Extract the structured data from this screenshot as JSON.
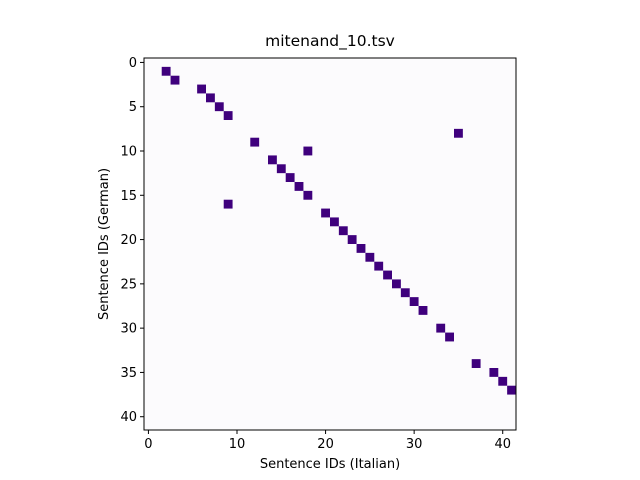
{
  "chart_data": {
    "type": "heatmap",
    "title": "mitenand_10.tsv",
    "xlabel": "Sentence IDs (Italian)",
    "ylabel": "Sentence IDs (German)",
    "xlim": [
      -0.5,
      41.5
    ],
    "ylim": [
      41.5,
      -0.5
    ],
    "x_ticks": [
      0,
      10,
      20,
      30,
      40
    ],
    "y_ticks": [
      0,
      5,
      10,
      15,
      20,
      25,
      30,
      35,
      40
    ],
    "grid": false,
    "colors": {
      "background": "#fcfbfd",
      "cell": "#3f007d"
    },
    "cells": [
      {
        "x": 2,
        "y": 1
      },
      {
        "x": 3,
        "y": 2
      },
      {
        "x": 6,
        "y": 3
      },
      {
        "x": 7,
        "y": 4
      },
      {
        "x": 8,
        "y": 5
      },
      {
        "x": 9,
        "y": 6
      },
      {
        "x": 35,
        "y": 8
      },
      {
        "x": 12,
        "y": 9
      },
      {
        "x": 18,
        "y": 10
      },
      {
        "x": 14,
        "y": 11
      },
      {
        "x": 15,
        "y": 12
      },
      {
        "x": 16,
        "y": 13
      },
      {
        "x": 17,
        "y": 14
      },
      {
        "x": 18,
        "y": 15
      },
      {
        "x": 9,
        "y": 16
      },
      {
        "x": 20,
        "y": 17
      },
      {
        "x": 21,
        "y": 18
      },
      {
        "x": 22,
        "y": 19
      },
      {
        "x": 23,
        "y": 20
      },
      {
        "x": 24,
        "y": 21
      },
      {
        "x": 25,
        "y": 22
      },
      {
        "x": 26,
        "y": 23
      },
      {
        "x": 27,
        "y": 24
      },
      {
        "x": 28,
        "y": 25
      },
      {
        "x": 29,
        "y": 26
      },
      {
        "x": 30,
        "y": 27
      },
      {
        "x": 31,
        "y": 28
      },
      {
        "x": 33,
        "y": 30
      },
      {
        "x": 34,
        "y": 31
      },
      {
        "x": 37,
        "y": 34
      },
      {
        "x": 39,
        "y": 35
      },
      {
        "x": 40,
        "y": 36
      },
      {
        "x": 41,
        "y": 37
      }
    ]
  }
}
